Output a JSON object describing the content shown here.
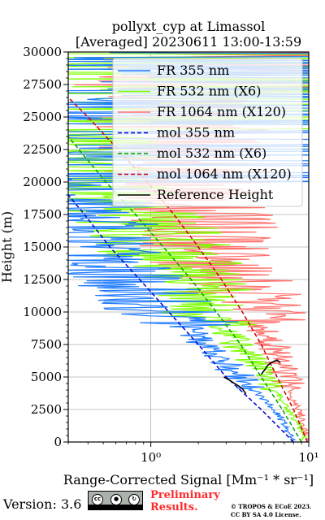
{
  "chart_data": {
    "type": "line",
    "title": [
      "pollyxt_cyp at Limassol",
      "[Averaged] 20230611 13:00-13:59"
    ],
    "xlabel": "Range-Corrected Signal [Mm⁻¹ * sr⁻¹]",
    "ylabel": "Height (m)",
    "xscale": "log",
    "xlim": [
      0.3,
      10
    ],
    "ylim": [
      0,
      30000
    ],
    "grid": true,
    "legend_position": "top-right",
    "x_tick_labels": [
      "10⁰",
      "10¹"
    ],
    "y_ticks": [
      0,
      2500,
      5000,
      7500,
      10000,
      12500,
      15000,
      17500,
      20000,
      22500,
      25000,
      27500,
      30000
    ],
    "series": [
      {
        "name": "FR 355 nm",
        "color": "#1f7bff",
        "style": "solid",
        "x": [
          8.0,
          6.5,
          5.2,
          4.6,
          4.0,
          3.0,
          2.4,
          1.8,
          1.3,
          1.0,
          0.8,
          0.6,
          0.5,
          0.4,
          0.35,
          0.3
        ],
        "y": [
          100,
          2000,
          3300,
          3900,
          4500,
          6000,
          7000,
          8500,
          10000,
          11000,
          12000,
          13000,
          14000,
          16000,
          18000,
          20000
        ]
      },
      {
        "name": "FR 532 nm (X6)",
        "color": "#7fff00",
        "style": "solid",
        "x": [
          9.5,
          8.0,
          6.5,
          5.5,
          5.0,
          4.2,
          3.5,
          3.0,
          2.7,
          2.3,
          2.0,
          1.8,
          1.5,
          1.2,
          0.9,
          0.6,
          0.4,
          0.3
        ],
        "y": [
          100,
          2000,
          3500,
          4500,
          5500,
          6500,
          7500,
          8500,
          9500,
          10500,
          11500,
          12500,
          13500,
          15000,
          16500,
          18500,
          21000,
          24000
        ]
      },
      {
        "name": "FR 1064 nm (X120)",
        "color": "#ff6f6a",
        "style": "solid",
        "x": [
          10.0,
          9.0,
          7.5,
          7.0,
          6.5,
          5.8,
          5.2,
          4.6,
          4.0,
          3.5,
          3.0,
          2.6,
          2.2,
          1.9,
          1.7,
          1.5,
          1.3
        ],
        "y": [
          100,
          2000,
          4000,
          5500,
          6500,
          7500,
          8500,
          9500,
          10500,
          11500,
          12500,
          14000,
          16000,
          18000,
          21000,
          24000,
          27000
        ]
      },
      {
        "name": "mol 355 nm",
        "color": "#0000cd",
        "style": "dashed",
        "x": [
          8.0,
          5.0,
          3.0,
          2.0,
          1.3,
          0.85,
          0.55,
          0.38,
          0.3
        ],
        "y": [
          0,
          2500,
          5000,
          7500,
          10000,
          12500,
          15000,
          17500,
          19000
        ]
      },
      {
        "name": "mol 532 nm (X6)",
        "color": "#00a000",
        "style": "dashed",
        "x": [
          9.0,
          6.8,
          5.0,
          3.7,
          2.6,
          1.8,
          1.2,
          0.8,
          0.52,
          0.35,
          0.3
        ],
        "y": [
          0,
          2500,
          5000,
          7500,
          10000,
          12500,
          15000,
          17500,
          20000,
          22500,
          23500
        ]
      },
      {
        "name": "mol 1064 nm (X120)",
        "color": "#cc0000",
        "style": "dashed",
        "x": [
          9.8,
          8.0,
          6.3,
          5.0,
          3.8,
          2.8,
          2.0,
          1.4,
          0.95,
          0.62,
          0.4,
          0.3
        ],
        "y": [
          0,
          2500,
          5000,
          7500,
          10000,
          12500,
          15000,
          17500,
          20000,
          22500,
          25000,
          26500
        ]
      },
      {
        "name": "Reference Height",
        "color": "#000000",
        "style": "solid",
        "segments": [
          {
            "x": [
              2.9,
              3.0,
              3.2,
              3.4,
              3.6,
              3.8,
              4.0
            ],
            "y": [
              5000,
              4900,
              4700,
              4500,
              4300,
              4100,
              3700
            ]
          },
          {
            "x": [
              5.0,
              5.3,
              5.5,
              5.8,
              6.0,
              6.3,
              6.6
            ],
            "y": [
              5200,
              5600,
              5900,
              6100,
              6200,
              6300,
              6100
            ]
          }
        ]
      }
    ]
  },
  "footer": {
    "version": "Version: 3.6",
    "preliminary": [
      "Preliminary",
      "Results."
    ],
    "copyright": [
      "© TROPOS & ECoE 2023.",
      "CC BY SA 4.0 License."
    ],
    "license_badge": {
      "icons": [
        "cc-icon",
        "by-icon",
        "sa-icon"
      ],
      "labels": [
        "BY",
        "SA"
      ]
    }
  }
}
